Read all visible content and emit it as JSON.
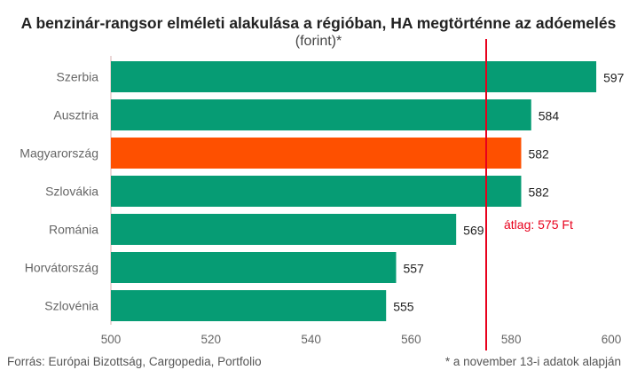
{
  "title": "A benzinár-rangsor elméleti alakulása a régióban, HA megtörténne az adóemelés",
  "subtitle": "(forint)*",
  "footer": {
    "source": "Forrás: Európai Bizottság, Cargopedia, Portfolio",
    "note": "* a november 13-i adatok alapján"
  },
  "colors": {
    "bar": "#069c74",
    "highlight": "#fe5000",
    "average_line": "#e8001c",
    "average_label": "#e8001c",
    "axis_text": "#666666",
    "value_text": "#222222"
  },
  "chart_data": {
    "type": "bar",
    "orientation": "horizontal",
    "categories": [
      "Szerbia",
      "Ausztria",
      "Magyarország",
      "Szlovákia",
      "Románia",
      "Horvátország",
      "Szlovénia"
    ],
    "values": [
      597,
      584,
      582,
      582,
      569,
      557,
      555
    ],
    "highlight_category": "Magyarország",
    "xlim": [
      500,
      600
    ],
    "xticks": [
      500,
      520,
      540,
      560,
      580,
      600
    ],
    "grid": false,
    "average": {
      "value": 575,
      "label": "átlag: 575 Ft"
    },
    "title": "A benzinár-rangsor elméleti alakulása a régióban, HA megtörténne az adóemelés",
    "xlabel": "",
    "ylabel": ""
  }
}
